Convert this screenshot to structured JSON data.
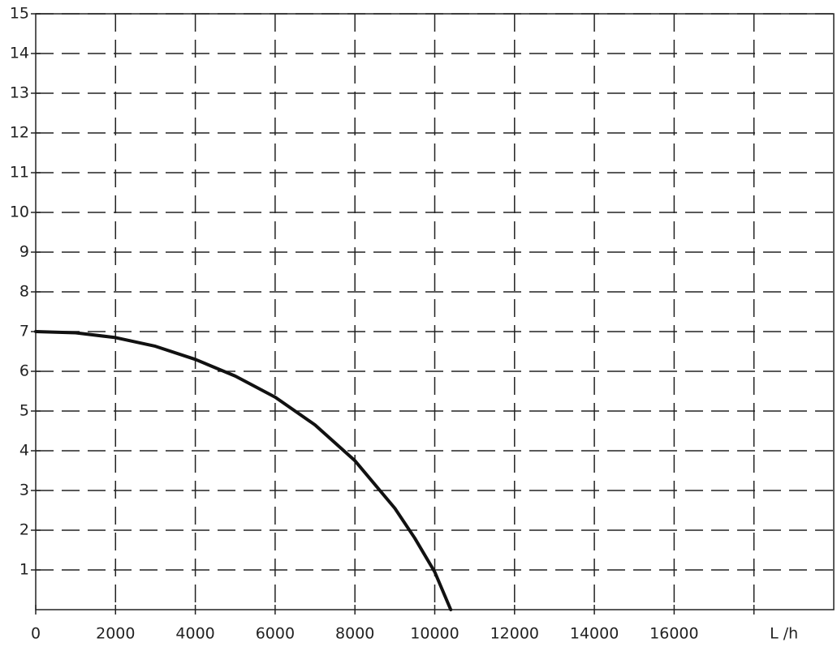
{
  "chart_data": {
    "type": "line",
    "x": [
      0,
      1000,
      2000,
      3000,
      4000,
      5000,
      6000,
      7000,
      8000,
      9000,
      9500,
      10000,
      10400
    ],
    "values": [
      7,
      6.97,
      6.85,
      6.63,
      6.3,
      5.88,
      5.35,
      4.65,
      3.75,
      2.55,
      1.8,
      0.95,
      0
    ],
    "color": "#111111",
    "xlim": [
      0,
      20000
    ],
    "ylim": [
      0,
      15
    ],
    "xticks": [
      0,
      2000,
      4000,
      6000,
      8000,
      10000,
      12000,
      14000,
      16000,
      {
        "value": 18000,
        "label": "L /h"
      }
    ],
    "yticks": [
      1,
      2,
      3,
      4,
      5,
      6,
      7,
      8,
      9,
      10,
      11,
      12,
      13,
      14,
      15
    ],
    "grid": true,
    "grid_style": "dashed"
  }
}
